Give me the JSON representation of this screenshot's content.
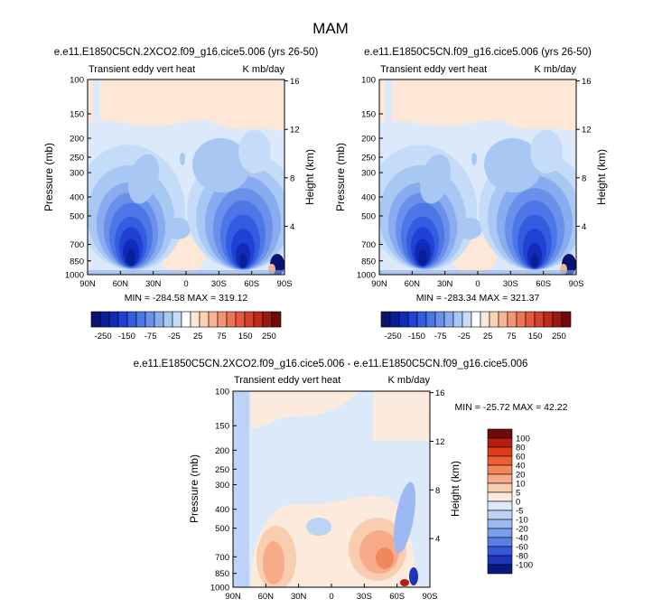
{
  "figure": {
    "title": "MAM"
  },
  "panels": [
    {
      "id": "top-left",
      "title": "e.e11.E1850C5CN.2XCO2.f09_g16.cice5.006 (yrs 26-50)",
      "left_label": "Transient eddy vert heat",
      "right_label": "K mb/day",
      "stats": "MIN = -284.58  MAX = 319.12"
    },
    {
      "id": "top-right",
      "title": "e.e11.E1850C5CN.f09_g16.cice5.006 (yrs 26-50)",
      "left_label": "Transient eddy vert heat",
      "right_label": "K mb/day",
      "stats": "MIN = -283.34  MAX = 321.37"
    },
    {
      "id": "bottom",
      "title": "e.e11.E1850C5CN.2XCO2.f09_g16.cice5.006 - e.e11.E1850C5CN.f09_g16.cice5.006",
      "left_label": "Transient eddy vert heat",
      "right_label": "K mb/day",
      "stats": "MIN = -25.72  MAX = 42.22"
    }
  ],
  "axes": {
    "ylabel_left": "Pressure (mb)",
    "ylabel_right": "Height (km)",
    "pressure_ticks": [
      100,
      150,
      200,
      250,
      300,
      400,
      500,
      700,
      850,
      1000
    ],
    "height_ticks": [
      4,
      8,
      12,
      16
    ],
    "lat_ticks": [
      "90N",
      "60N",
      "30N",
      "0",
      "30S",
      "60S",
      "90S"
    ]
  },
  "chart_data": [
    {
      "type": "heatmap",
      "panel": "top-left",
      "variable": "Transient eddy vert heat",
      "units": "K mb/day",
      "min": -284.58,
      "max": 319.12,
      "color_levels": [
        -250,
        -200,
        -150,
        -100,
        -75,
        -50,
        -25,
        -10,
        10,
        25,
        50,
        75,
        100,
        150,
        200,
        250
      ],
      "colorbar_labels": [
        "-250",
        "-150",
        "-75",
        "-25",
        "25",
        "75",
        "150",
        "250"
      ]
    },
    {
      "type": "heatmap",
      "panel": "top-right",
      "variable": "Transient eddy vert heat",
      "units": "K mb/day",
      "min": -283.34,
      "max": 321.37,
      "color_levels": [
        -250,
        -200,
        -150,
        -100,
        -75,
        -50,
        -25,
        -10,
        10,
        25,
        50,
        75,
        100,
        150,
        200,
        250
      ],
      "colorbar_labels": [
        "-250",
        "-150",
        "-75",
        "-25",
        "25",
        "75",
        "150",
        "250"
      ]
    },
    {
      "type": "heatmap",
      "panel": "bottom",
      "variable": "Transient eddy vert heat",
      "units": "K mb/day",
      "min": -25.72,
      "max": 42.22,
      "colorbar_labels": [
        "100",
        "80",
        "60",
        "40",
        "20",
        "10",
        "5",
        "0",
        "-5",
        "-10",
        "-20",
        "-40",
        "-60",
        "-80",
        "-100"
      ]
    }
  ],
  "colors": {
    "neg": [
      "#dbe9fb",
      "#c5dcf9",
      "#a9c7f3",
      "#89abf0",
      "#6a90eb",
      "#4d76e6",
      "#345ce0",
      "#2041d4",
      "#0e2cb8",
      "#0a1e99",
      "#08146f"
    ],
    "pos": [
      "#fde8d8",
      "#fbd1b8",
      "#f7b496",
      "#f39476",
      "#ee7456",
      "#e8583c",
      "#d7402a",
      "#bd2a1c",
      "#9b1a12",
      "#700c08"
    ],
    "bottom_bar": [
      "#700c08",
      "#b31e10",
      "#dc3b1c",
      "#ee5f36",
      "#f3875c",
      "#f7ab88",
      "#f9cdb0",
      "#fcebdc",
      "#dce9fa",
      "#bcd3f6",
      "#9cbaf1",
      "#7c9ded",
      "#5a7ee6",
      "#3659dc",
      "#1d35b8",
      "#0a1780"
    ]
  }
}
